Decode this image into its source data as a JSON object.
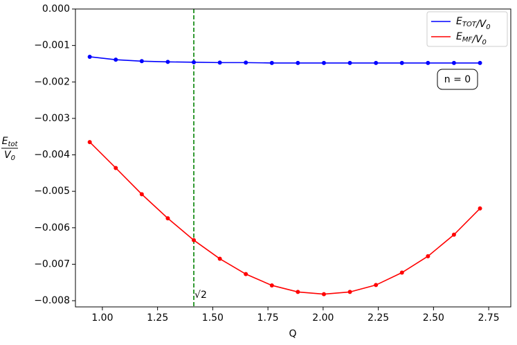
{
  "chart_data": {
    "type": "line",
    "x": [
      0.9428,
      1.0607,
      1.1785,
      1.2964,
      1.4142,
      1.5321,
      1.6499,
      1.7678,
      1.8856,
      2.0035,
      2.1213,
      2.2392,
      2.357,
      2.4749,
      2.5927,
      2.7106
    ],
    "series": [
      {
        "name": "ETOT/V0",
        "color": "#0000ff",
        "values": [
          -0.00131,
          -0.00139,
          -0.00143,
          -0.00145,
          -0.00146,
          -0.00147,
          -0.00147,
          -0.00148,
          -0.00148,
          -0.00148,
          -0.00148,
          -0.00148,
          -0.00148,
          -0.00148,
          -0.00148,
          -0.00148
        ]
      },
      {
        "name": "EMF/V0",
        "color": "#ff0000",
        "values": [
          -0.00365,
          -0.00436,
          -0.00508,
          -0.00574,
          -0.00634,
          -0.00685,
          -0.00727,
          -0.00758,
          -0.00776,
          -0.00782,
          -0.00776,
          -0.00757,
          -0.00723,
          -0.00678,
          -0.00619,
          -0.00547
        ]
      }
    ],
    "xlabel": "Q",
    "ylabel": {
      "numerator": "Etot",
      "denominator": "V0"
    },
    "xlim": [
      0.878,
      2.85
    ],
    "ylim": [
      -0.00817,
      0
    ],
    "xticks": [
      {
        "value": 1.0,
        "label": "1.00"
      },
      {
        "value": 1.25,
        "label": "1.25"
      },
      {
        "value": 1.5,
        "label": "1.50"
      },
      {
        "value": 1.75,
        "label": "1.75"
      },
      {
        "value": 2.0,
        "label": "2.00"
      },
      {
        "value": 2.25,
        "label": "2.25"
      },
      {
        "value": 2.5,
        "label": "2.50"
      },
      {
        "value": 2.75,
        "label": "2.75"
      }
    ],
    "yticks": [
      {
        "value": -0.008,
        "label": "−0.008"
      },
      {
        "value": -0.007,
        "label": "−0.007"
      },
      {
        "value": -0.006,
        "label": "−0.006"
      },
      {
        "value": -0.005,
        "label": "−0.005"
      },
      {
        "value": -0.004,
        "label": "−0.004"
      },
      {
        "value": -0.003,
        "label": "−0.003"
      },
      {
        "value": -0.002,
        "label": "−0.002"
      },
      {
        "value": -0.001,
        "label": "−0.001"
      },
      {
        "value": 0.0,
        "label": "0.000"
      }
    ],
    "vline": {
      "x": 1.41421,
      "label": "√2",
      "color": "#008000"
    },
    "annotation": "n = 0",
    "legend": "upper right"
  }
}
